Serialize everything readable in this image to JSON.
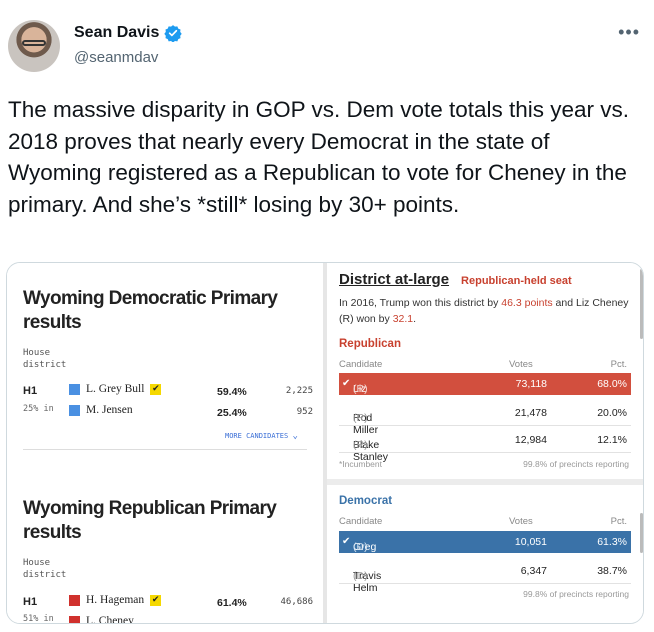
{
  "tweet": {
    "display_name": "Sean Davis",
    "handle": "@seanmdav",
    "text": "The massive disparity in GOP vs. Dem vote totals this year vs. 2018 proves that nearly every Democrat in the state of Wyoming registered as a Republican to vote for Cheney in the primary. And she’s *still* losing by 30+ points.",
    "more_label": "•••",
    "verified_color": "#1d9bf0"
  },
  "left_panel": {
    "dem": {
      "title": "Wyoming Democratic Primary results",
      "sub1": "House",
      "sub2": "district",
      "district": "H1",
      "pct_in": "25% in",
      "candidates": [
        {
          "name": "L. Grey Bull",
          "pct": "59.4%",
          "votes": "2,225",
          "color": "#4a90e2",
          "winner": true
        },
        {
          "name": "M. Jensen",
          "pct": "25.4%",
          "votes": "952",
          "color": "#4a90e2",
          "winner": false
        }
      ],
      "more_link": "MORE CANDIDATES"
    },
    "rep": {
      "title": "Wyoming Republican Primary results",
      "sub1": "House",
      "sub2": "district",
      "district": "H1",
      "pct_in": "51% in",
      "candidates": [
        {
          "name": "H. Hageman",
          "pct": "61.4%",
          "votes": "46,686",
          "color": "#d0312d",
          "winner": true
        },
        {
          "name": "L. Cheney",
          "pct": "",
          "votes": "",
          "color": "#d0312d",
          "winner": false
        }
      ]
    }
  },
  "right_panel": {
    "title": "District at-large",
    "badge": "Republican-held seat",
    "desc_a": "In 2016, Trump won this district by ",
    "desc_b": "46.3 points",
    "desc_c": " and Liz Cheney (R) won by ",
    "desc_d": "32.1",
    "desc_e": ".",
    "rep": {
      "party": "Republican",
      "party_color": "#c8412f",
      "headers": {
        "candidate": "Candidate",
        "votes": "Votes",
        "pct": "Pct."
      },
      "rows": [
        {
          "check": "✔",
          "name": "Liz Cheney*",
          "tag": "(R)",
          "votes": "73,118",
          "pct": "68.0%"
        },
        {
          "check": "",
          "name": "Rod Miller",
          "tag": "(R)",
          "votes": "21,478",
          "pct": "20.0%"
        },
        {
          "check": "",
          "name": "Blake Stanley",
          "tag": "(R)",
          "votes": "12,984",
          "pct": "12.1%"
        }
      ],
      "foot_left": "*Incumbent",
      "foot_right": "99.8% of precincts reporting"
    },
    "dem": {
      "party": "Democrat",
      "party_color": "#3a72a8",
      "headers": {
        "candidate": "Candidate",
        "votes": "Votes",
        "pct": "Pct."
      },
      "rows": [
        {
          "check": "✔",
          "name": "Greg Hunter",
          "tag": "(D)",
          "votes": "10,051",
          "pct": "61.3%"
        },
        {
          "check": "",
          "name": "Travis Helm",
          "tag": "(D)",
          "votes": "6,347",
          "pct": "38.7%"
        }
      ],
      "foot_right": "99.8% of precincts reporting"
    }
  }
}
